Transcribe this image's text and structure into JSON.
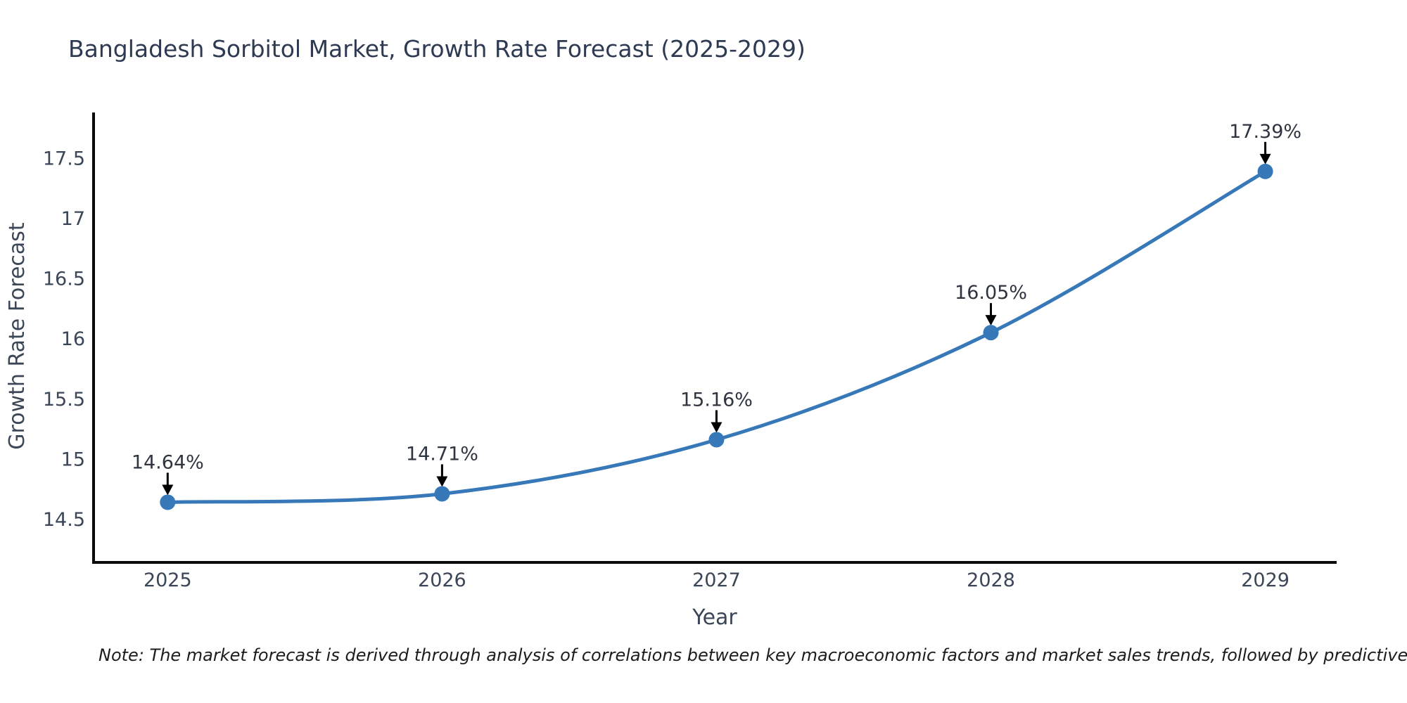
{
  "title": "Bangladesh Sorbitol Market, Growth Rate Forecast (2025-2029)",
  "note": "Note: The market forecast is derived through analysis of correlations between key macroeconomic factors and market sales trends, followed by predictive modeling to project future sal",
  "colors": {
    "line": "#3778b9",
    "marker": "#3778b9",
    "spine": "#0a0a0a",
    "arrow": "#000000",
    "tick_text": "#3b4657",
    "title_text": "#2e3a52"
  },
  "chart_data": {
    "type": "line",
    "title": "Bangladesh Sorbitol Market, Growth Rate Forecast (2025-2029)",
    "xlabel": "Year",
    "ylabel": "Growth Rate Forecast",
    "x": [
      2025,
      2026,
      2027,
      2028,
      2029
    ],
    "values": [
      14.64,
      14.71,
      15.16,
      16.05,
      17.39
    ],
    "point_labels": [
      "14.64%",
      "14.71%",
      "15.16%",
      "16.05%",
      "17.39%"
    ],
    "x_tick_labels": [
      "2025",
      "2026",
      "2027",
      "2028",
      "2029"
    ],
    "y_ticks": [
      14.5,
      15,
      15.5,
      16,
      16.5,
      17,
      17.5
    ],
    "y_tick_labels": [
      "14.5",
      "15",
      "15.5",
      "16",
      "16.5",
      "17",
      "17.5"
    ],
    "xlim": [
      2024.73,
      2029.26
    ],
    "ylim": [
      14.14,
      17.88
    ],
    "grid": false,
    "legend_position": "none",
    "curve": "smooth",
    "marker": "circle",
    "annotations": "value labels with downward arrows above each point"
  }
}
